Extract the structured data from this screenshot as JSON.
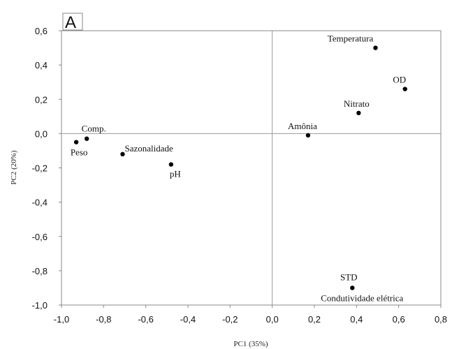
{
  "chart_data": {
    "type": "scatter",
    "panel_label": "A",
    "xlabel": "PC1 (35%)",
    "ylabel": "PC2 (20%)",
    "xlim": [
      -1.0,
      0.8
    ],
    "ylim": [
      -1.0,
      0.6
    ],
    "x_ticks": [
      "-1,0",
      "-0,8",
      "-0,6",
      "-0,4",
      "-0,2",
      "0,0",
      "0,2",
      "0,4",
      "0,6",
      "0,8"
    ],
    "y_ticks": [
      "0,6",
      "0,4",
      "0,2",
      "0,0",
      "-0,2",
      "-0,4",
      "-0,6",
      "-0,8",
      "-1,0"
    ],
    "grid": false,
    "reference_lines": {
      "x": 0.0,
      "y": 0.0
    },
    "points": [
      {
        "label": "Temperatura",
        "x": 0.49,
        "y": 0.5,
        "label_pos": "above-left"
      },
      {
        "label": "OD",
        "x": 0.63,
        "y": 0.26,
        "label_pos": "above-left"
      },
      {
        "label": "Nitrato",
        "x": 0.41,
        "y": 0.12,
        "label_pos": "above-left"
      },
      {
        "label": "Amônia",
        "x": 0.17,
        "y": -0.01,
        "label_pos": "above-left"
      },
      {
        "label": "Comp.",
        "x": -0.88,
        "y": -0.03,
        "label_pos": "above"
      },
      {
        "label": "Peso",
        "x": -0.93,
        "y": -0.05,
        "label_pos": "below"
      },
      {
        "label": "Sazonalidade",
        "x": -0.71,
        "y": -0.12,
        "label_pos": "above-right"
      },
      {
        "label": "pH",
        "x": -0.48,
        "y": -0.18,
        "label_pos": "below"
      },
      {
        "label": "STD",
        "x": 0.38,
        "y": -0.9,
        "label_pos": "above"
      },
      {
        "label": "Condutividade elétrica",
        "x": 0.38,
        "y": -0.9,
        "label_pos": "below"
      }
    ],
    "colors": {
      "points": "#000000",
      "frame": "#888888",
      "reference_lines": "#999999"
    }
  }
}
